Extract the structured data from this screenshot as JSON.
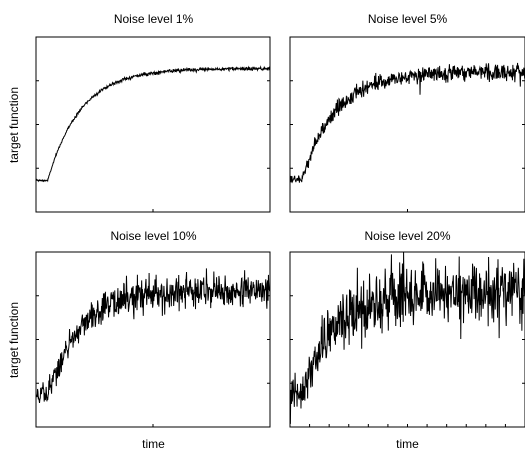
{
  "chart_data": [
    {
      "type": "line",
      "title": "Noise level 1%",
      "ylabel": "target function",
      "xlabel": "",
      "noise_level": 0.01,
      "description_of_series": "noisy step/exponential rise to plateau",
      "x_range": [
        0,
        1
      ],
      "y_range": [
        0,
        1
      ],
      "series": [
        {
          "model": {
            "baseline": 0.18,
            "plateau": 0.82,
            "rise_start": 0.05,
            "tau": 0.14
          }
        }
      ]
    },
    {
      "type": "line",
      "title": "Noise level 5%",
      "ylabel": "",
      "xlabel": "",
      "noise_level": 0.05,
      "x_range": [
        0,
        1
      ],
      "y_range": [
        0,
        1
      ],
      "series": [
        {
          "model": {
            "baseline": 0.18,
            "plateau": 0.8,
            "rise_start": 0.05,
            "tau": 0.14
          }
        }
      ]
    },
    {
      "type": "line",
      "title": "Noise level 10%",
      "ylabel": "target function",
      "xlabel": "time",
      "noise_level": 0.1,
      "x_range": [
        0,
        1
      ],
      "y_range": [
        0,
        1
      ],
      "series": [
        {
          "model": {
            "baseline": 0.18,
            "plateau": 0.78,
            "rise_start": 0.05,
            "tau": 0.14
          }
        }
      ]
    },
    {
      "type": "line",
      "title": "Noise level 20%",
      "ylabel": "",
      "xlabel": "time",
      "noise_level": 0.2,
      "x_range": [
        0,
        1
      ],
      "y_range": [
        0,
        1
      ],
      "series": [
        {
          "model": {
            "baseline": 0.18,
            "plateau": 0.78,
            "rise_start": 0.05,
            "tau": 0.14
          }
        }
      ]
    }
  ]
}
